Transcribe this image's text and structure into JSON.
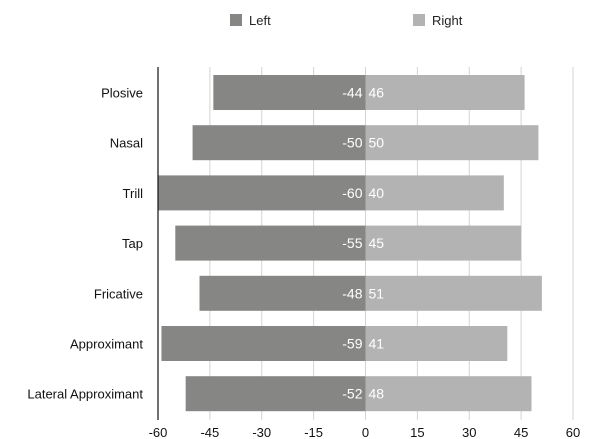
{
  "chart_data": {
    "type": "bar",
    "orientation": "horizontal",
    "stacked": "diverging",
    "categories": [
      "Plosive",
      "Nasal",
      "Trill",
      "Tap",
      "Fricative",
      "Approximant",
      "Lateral Approximant"
    ],
    "series": [
      {
        "name": "Left",
        "values": [
          -44,
          -50,
          -60,
          -55,
          -48,
          -59,
          -52
        ],
        "color": "#868784"
      },
      {
        "name": "Right",
        "values": [
          46,
          50,
          40,
          45,
          51,
          41,
          48
        ],
        "color": "#b3b3b3"
      }
    ],
    "xlim": [
      -60,
      60
    ],
    "xticks": [
      -60,
      -45,
      -30,
      -15,
      0,
      15,
      30,
      45,
      60
    ],
    "legend": "top",
    "grid": true
  }
}
